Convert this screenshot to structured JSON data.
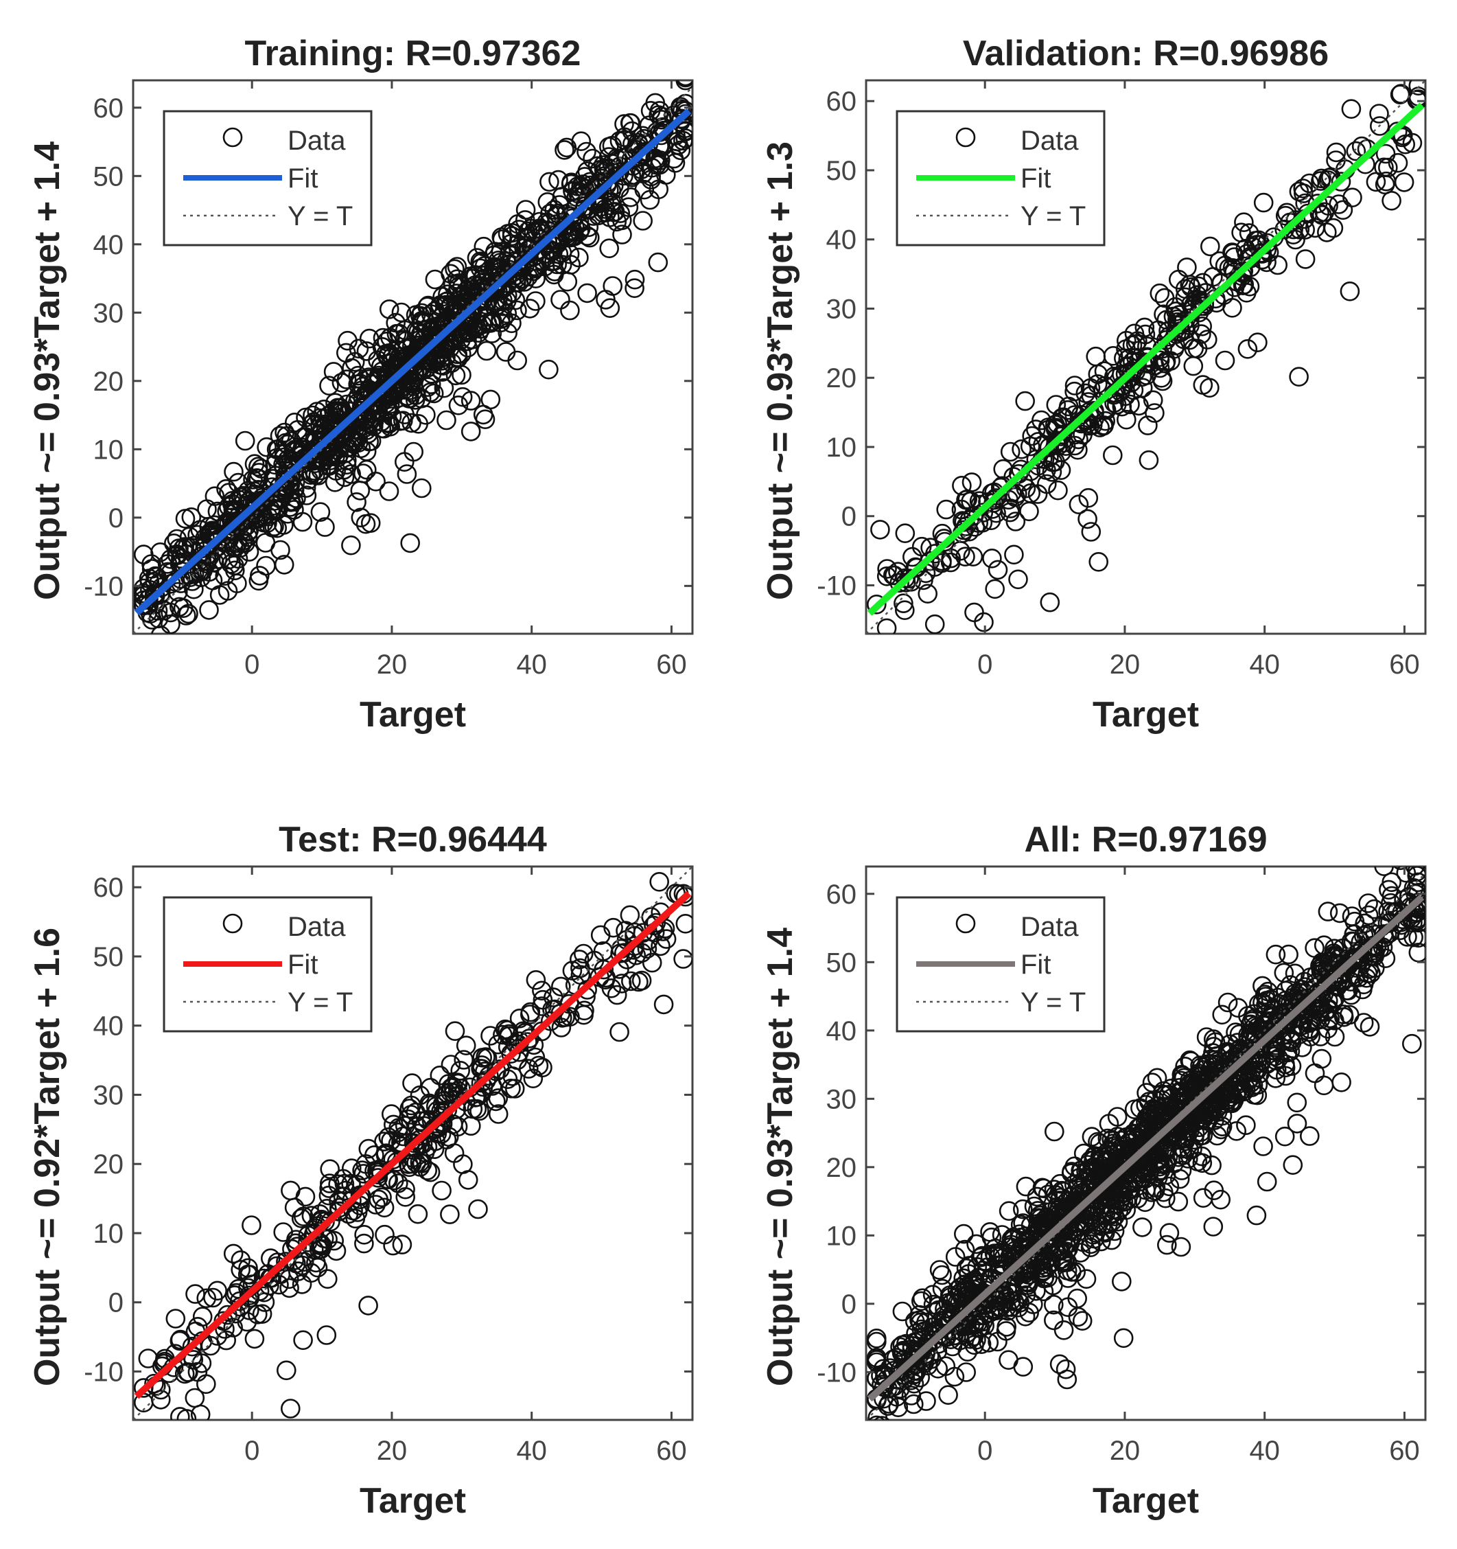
{
  "chart_data": [
    {
      "type": "scatter",
      "title": "Training: R=0.97362",
      "xlabel": "Target",
      "ylabel": "Output ~= 0.93*Target + 1.4",
      "xlim": [
        -17,
        63
      ],
      "ylim": [
        -17,
        64
      ],
      "xticks": [
        "0",
        "20",
        "40",
        "60"
      ],
      "yticks": [
        "-10",
        "0",
        "10",
        "20",
        "30",
        "40",
        "50",
        "60"
      ],
      "fit": {
        "slope": 0.93,
        "intercept": 1.4,
        "color": "#1f5fd6"
      },
      "identity_line": true,
      "legend": {
        "entries": [
          "Data",
          "Fit",
          "Y = T"
        ],
        "position": "top-left"
      },
      "sample": {
        "count": 1200,
        "noise": 4.5
      }
    },
    {
      "type": "scatter",
      "title": "Validation: R=0.96986",
      "xlabel": "Target",
      "ylabel": "Output ~= 0.93*Target + 1.3",
      "xlim": [
        -17,
        63
      ],
      "ylim": [
        -17,
        63
      ],
      "xticks": [
        "0",
        "20",
        "40",
        "60"
      ],
      "yticks": [
        "-10",
        "0",
        "10",
        "20",
        "30",
        "40",
        "50",
        "60"
      ],
      "fit": {
        "slope": 0.93,
        "intercept": 1.3,
        "color": "#19f02a"
      },
      "identity_line": true,
      "legend": {
        "entries": [
          "Data",
          "Fit",
          "Y = T"
        ],
        "position": "top-left"
      },
      "sample": {
        "count": 420,
        "noise": 4.0
      }
    },
    {
      "type": "scatter",
      "title": "Test: R=0.96444",
      "xlabel": "Target",
      "ylabel": "Output ~= 0.92*Target + 1.6",
      "xlim": [
        -17,
        63
      ],
      "ylim": [
        -17,
        63
      ],
      "xticks": [
        "0",
        "20",
        "40",
        "60"
      ],
      "yticks": [
        "-10",
        "0",
        "10",
        "20",
        "30",
        "40",
        "50",
        "60"
      ],
      "fit": {
        "slope": 0.92,
        "intercept": 1.6,
        "color": "#f01818"
      },
      "identity_line": true,
      "legend": {
        "entries": [
          "Data",
          "Fit",
          "Y = T"
        ],
        "position": "top-left"
      },
      "sample": {
        "count": 420,
        "noise": 4.5
      }
    },
    {
      "type": "scatter",
      "title": "All: R=0.97169",
      "xlabel": "Target",
      "ylabel": "Output ~= 0.93*Target + 1.4",
      "xlim": [
        -17,
        63
      ],
      "ylim": [
        -17,
        64
      ],
      "xticks": [
        "0",
        "20",
        "40",
        "60"
      ],
      "yticks": [
        "-10",
        "0",
        "10",
        "20",
        "30",
        "40",
        "50",
        "60"
      ],
      "fit": {
        "slope": 0.93,
        "intercept": 1.4,
        "color": "#7d7676"
      },
      "identity_line": true,
      "legend": {
        "entries": [
          "Data",
          "Fit",
          "Y = T"
        ],
        "position": "top-left"
      },
      "sample": {
        "count": 1500,
        "noise": 4.5
      }
    }
  ]
}
